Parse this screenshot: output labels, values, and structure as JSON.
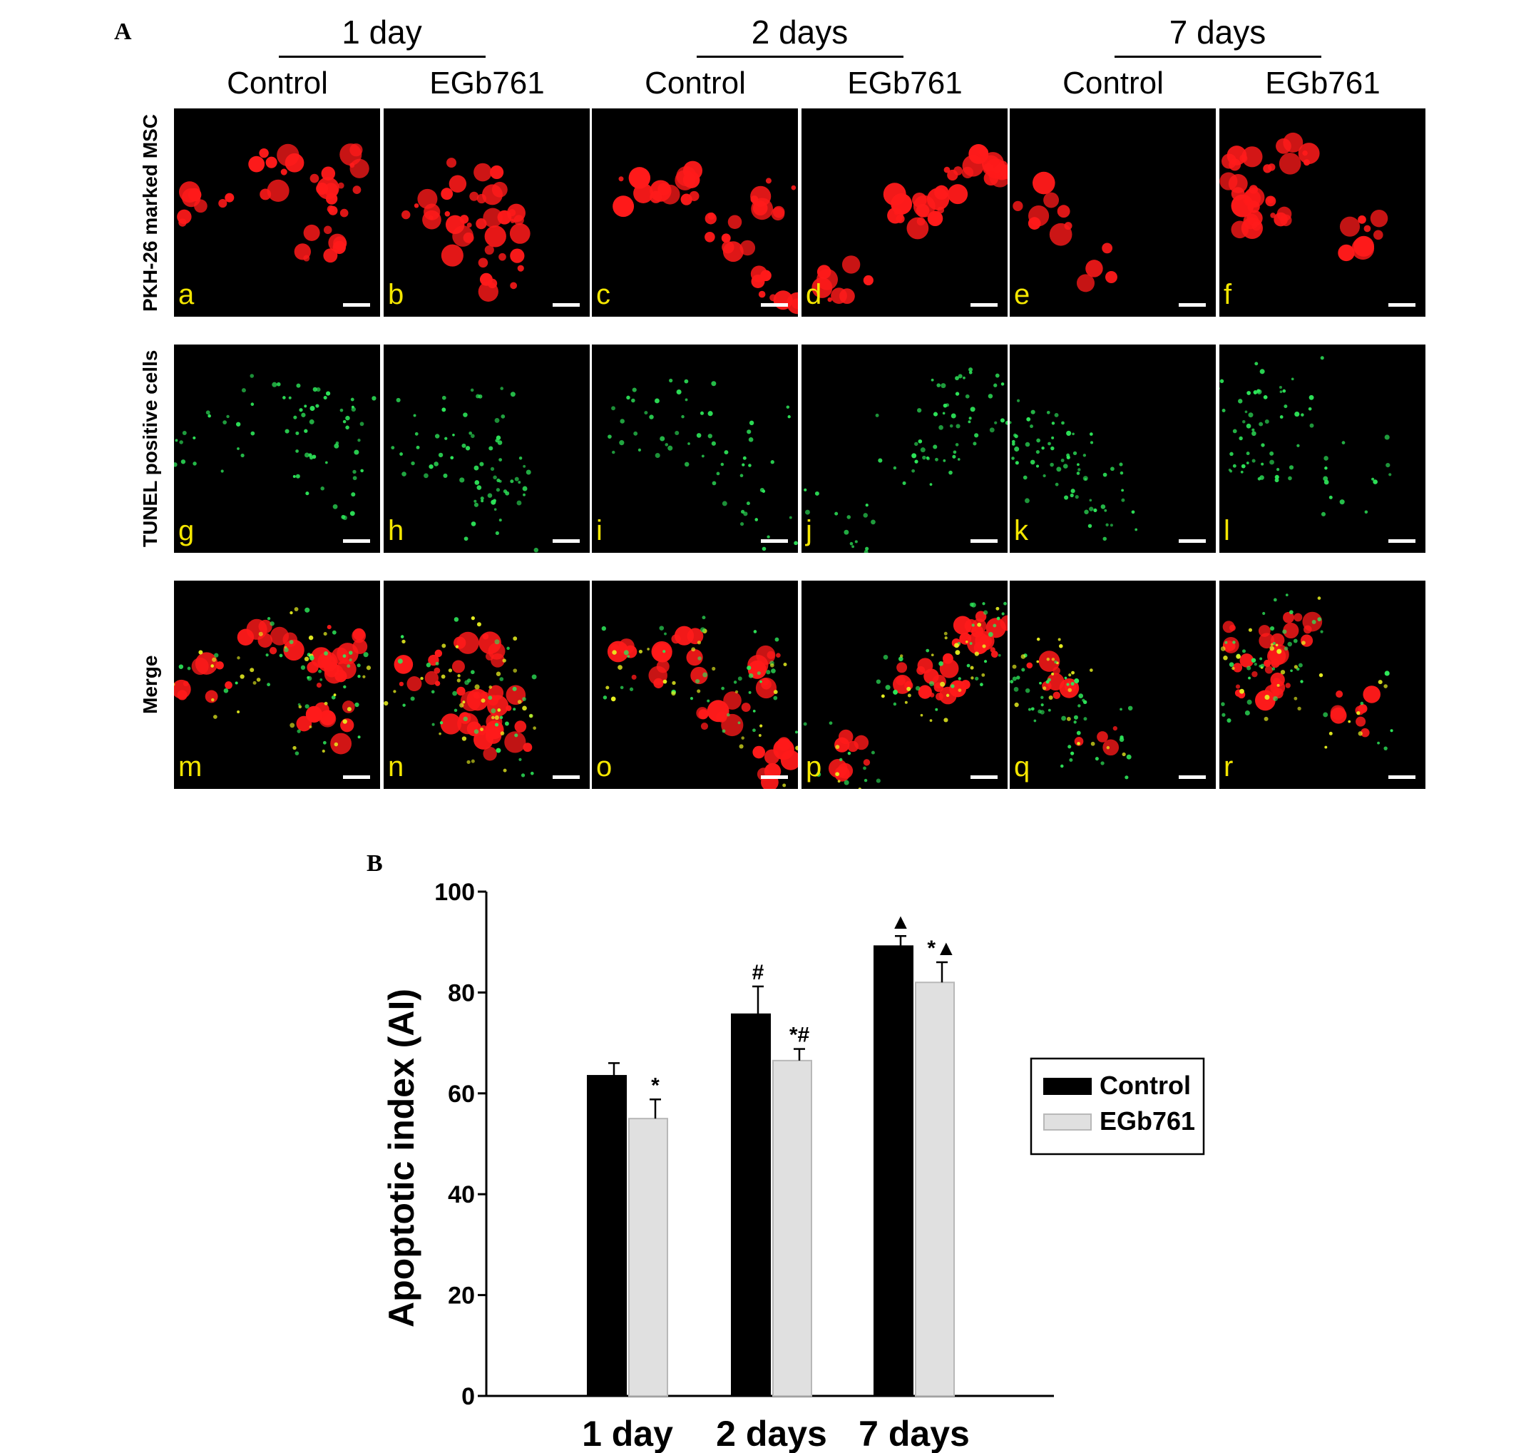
{
  "panel_a": {
    "letter": "A",
    "groups": [
      {
        "title": "1 day",
        "columns": [
          "Control",
          "EGb761"
        ]
      },
      {
        "title": "2 days",
        "columns": [
          "Control",
          "EGb761"
        ]
      },
      {
        "title": "7 days",
        "columns": [
          "Control",
          "EGb761"
        ]
      }
    ],
    "row_labels": [
      "PKH-26 marked MSC",
      "TUNEL  positive cells",
      "Merge"
    ],
    "tile_letters": [
      [
        "a",
        "b",
        "c",
        "d",
        "e",
        "f"
      ],
      [
        "g",
        "h",
        "i",
        "j",
        "k",
        "l"
      ],
      [
        "m",
        "n",
        "o",
        "p",
        "q",
        "r"
      ]
    ],
    "colors": {
      "red_stain": "#ff1a1a",
      "green_stain": "#2ee85a",
      "tile_letter": "#f4e600"
    }
  },
  "panel_b": {
    "letter": "B"
  },
  "chart_data": {
    "type": "bar",
    "categories": [
      "1 day",
      "2 days",
      "7 days"
    ],
    "series": [
      {
        "name": "Control",
        "color": "#000000",
        "values": [
          63.5,
          75.7,
          89.2
        ],
        "errors": [
          2.5,
          5.5,
          2.0
        ],
        "annotations": [
          "",
          "#",
          "▲"
        ]
      },
      {
        "name": "EGb761",
        "color": "#e0e0e0",
        "values": [
          55.0,
          66.5,
          82.0
        ],
        "errors": [
          3.8,
          2.3,
          4.0
        ],
        "annotations": [
          "*",
          "*#",
          "*▲"
        ]
      }
    ],
    "ylabel": "Apoptotic index (AI)",
    "xlabel": "",
    "ylim": [
      0,
      100
    ],
    "yticks": [
      0,
      20,
      40,
      60,
      80,
      100
    ],
    "yticklabels": [
      "0",
      "20",
      "40",
      "60",
      "80",
      "100"
    ],
    "legend": "right",
    "grid": false
  }
}
